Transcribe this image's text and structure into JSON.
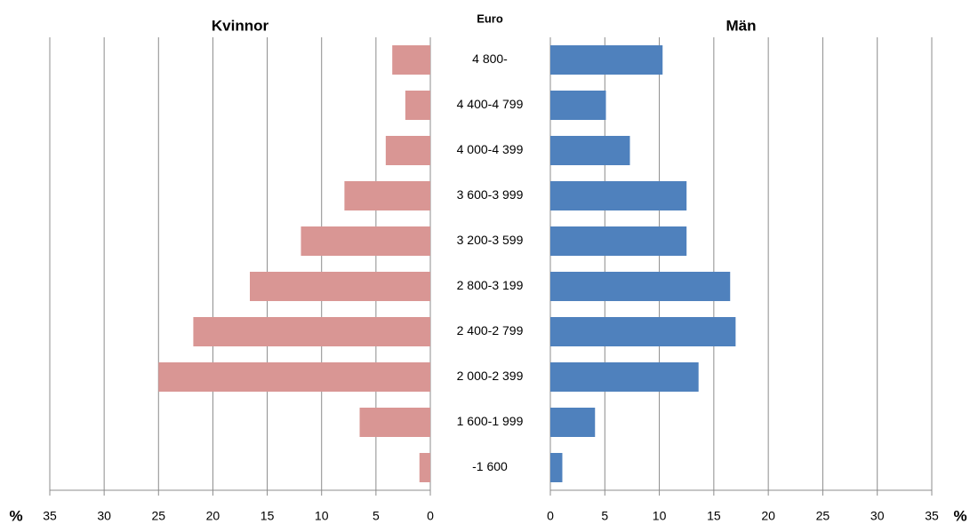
{
  "chart_data": {
    "type": "pyramid",
    "category_label": "Euro",
    "categories": [
      "4 800-",
      "4 400-4 799",
      "4 000-4 399",
      "3 600-3 999",
      "3 200-3 599",
      "2 800-3 199",
      "2 400-2 799",
      "2 000-2 399",
      "1 600-1 999",
      "-1 600"
    ],
    "series": [
      {
        "name": "Kvinnor",
        "color": "#d99694",
        "values": [
          3.5,
          2.3,
          4.1,
          7.9,
          11.9,
          16.6,
          21.8,
          25.0,
          6.5,
          1.0
        ]
      },
      {
        "name": "Män",
        "color": "#4f81bd",
        "values": [
          10.3,
          5.1,
          7.3,
          12.5,
          12.5,
          16.5,
          17.0,
          13.6,
          4.1,
          1.1
        ]
      }
    ],
    "xlabel": "%",
    "xlim": [
      0,
      35
    ],
    "xticks": [
      0,
      5,
      10,
      15,
      20,
      25,
      30,
      35
    ],
    "grid": true
  }
}
